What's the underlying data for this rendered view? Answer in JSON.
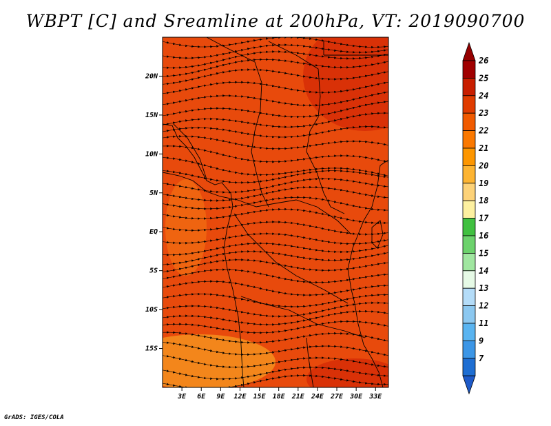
{
  "title": "WBPT [C] and Sreamline at 200hPa, VT: 2019090700",
  "credit": "GrADS: IGES/COLA",
  "map": {
    "lon_range": [
      0,
      35
    ],
    "lat_range": [
      -20,
      25
    ],
    "lon_ticks": [
      "3E",
      "6E",
      "9E",
      "12E",
      "15E",
      "18E",
      "21E",
      "24E",
      "27E",
      "30E",
      "33E"
    ],
    "lon_tick_values": [
      3,
      6,
      9,
      12,
      15,
      18,
      21,
      24,
      27,
      30,
      33
    ],
    "lat_ticks": [
      "20N",
      "15N",
      "10N",
      "5N",
      "EQ",
      "5S",
      "10S",
      "15S"
    ],
    "lat_tick_values": [
      20,
      15,
      10,
      5,
      0,
      -5,
      -10,
      -15
    ],
    "field": "wet bulb potential temperature",
    "dominant_value": 24
  },
  "colorbar": {
    "labels": [
      "26",
      "25",
      "24",
      "23",
      "22",
      "21",
      "20",
      "19",
      "18",
      "17",
      "16",
      "15",
      "14",
      "13",
      "12",
      "11",
      "9",
      "7"
    ],
    "colors": [
      "#a00000",
      "#c81e00",
      "#e03c00",
      "#f05a00",
      "#fa7800",
      "#fd9600",
      "#fdb432",
      "#fdd278",
      "#fdf0a0",
      "#40c040",
      "#6cd26c",
      "#a0e6a0",
      "#e6fae6",
      "#b4dcf8",
      "#8cc8f0",
      "#5ab4f0",
      "#3c96e6",
      "#1e6ed2"
    ],
    "top_cap_color": "#960000",
    "bottom_cap_color": "#1e5ac8"
  },
  "colors": {
    "map_base": "#e84a0c",
    "map_hot": "#d42a06",
    "map_warm": "#f06a12",
    "map_cool": "#f5901e"
  }
}
